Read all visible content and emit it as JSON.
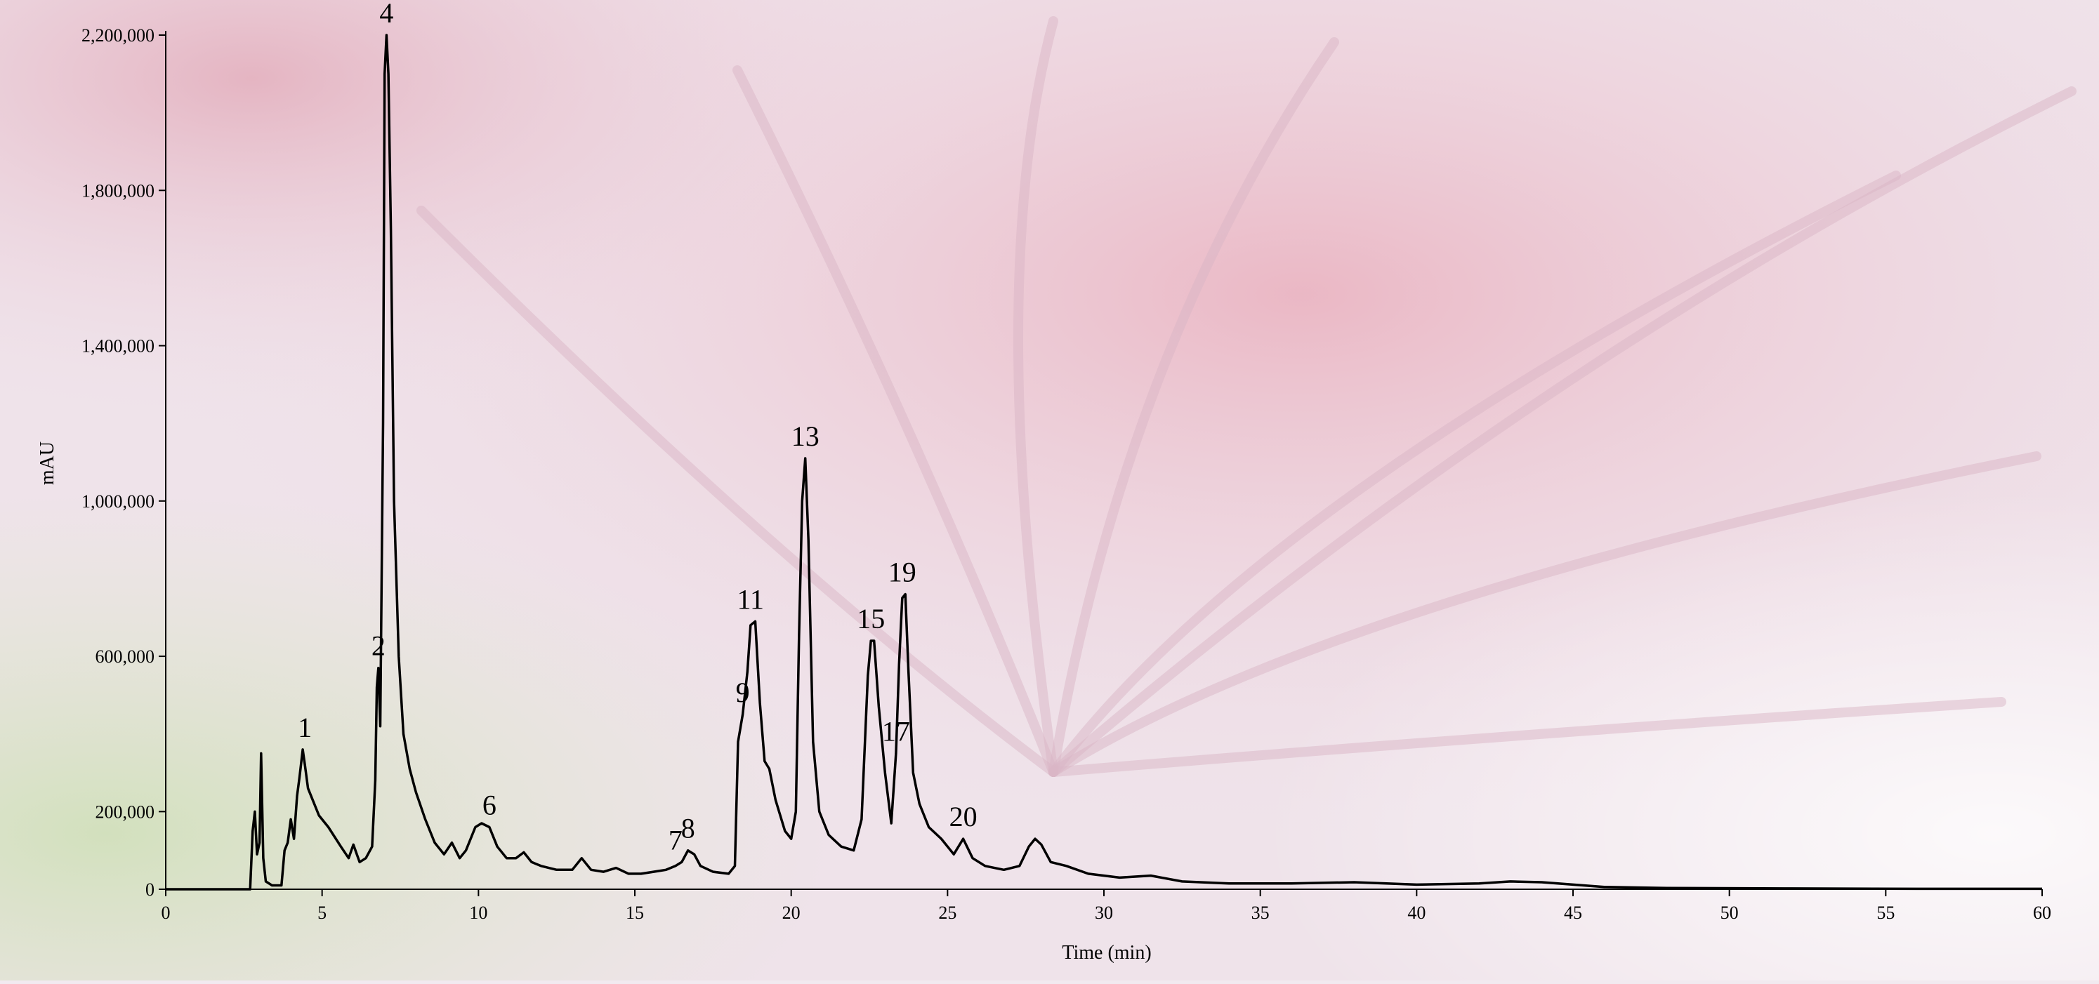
{
  "chart_data": {
    "type": "line",
    "title": "",
    "xlabel": "Time (min)",
    "ylabel": "mAU",
    "xlim": [
      0,
      60
    ],
    "ylim": [
      0,
      2200000
    ],
    "x_ticks": [
      0,
      5,
      10,
      15,
      20,
      25,
      30,
      35,
      40,
      45,
      50,
      55,
      60
    ],
    "x_tick_labels": [
      "0",
      "5",
      "10",
      "15",
      "20",
      "25",
      "30",
      "35",
      "40",
      "45",
      "50",
      "55",
      "60"
    ],
    "y_ticks": [
      0,
      200000,
      600000,
      1000000,
      1400000,
      1800000,
      2200000
    ],
    "y_tick_labels": [
      "0",
      "200,000",
      "600,000",
      "1,000,000",
      "1,400,000",
      "1,800,000",
      "2,200,000"
    ],
    "grid": false,
    "series": [
      {
        "name": "",
        "color": "#000000",
        "x": [
          0,
          2.7,
          2.78,
          2.85,
          2.92,
          3.0,
          3.05,
          3.12,
          3.2,
          3.4,
          3.7,
          3.8,
          3.9,
          4.0,
          4.1,
          4.2,
          4.28,
          4.38,
          4.45,
          4.55,
          4.7,
          4.9,
          5.2,
          5.6,
          5.85,
          6.0,
          6.2,
          6.4,
          6.6,
          6.7,
          6.75,
          6.8,
          6.86,
          6.95,
          7.0,
          7.06,
          7.12,
          7.2,
          7.3,
          7.45,
          7.6,
          7.8,
          8.0,
          8.3,
          8.6,
          8.9,
          9.15,
          9.4,
          9.6,
          9.9,
          10.1,
          10.35,
          10.6,
          10.9,
          11.2,
          11.45,
          11.7,
          12.0,
          12.5,
          13.0,
          13.3,
          13.6,
          14.0,
          14.4,
          14.8,
          15.2,
          15.6,
          16.0,
          16.3,
          16.5,
          16.7,
          16.9,
          17.1,
          17.5,
          18.0,
          18.2,
          18.3,
          18.45,
          18.6,
          18.7,
          18.85,
          19.0,
          19.15,
          19.3,
          19.5,
          19.8,
          20.0,
          20.15,
          20.25,
          20.35,
          20.45,
          20.55,
          20.7,
          20.9,
          21.2,
          21.6,
          22.0,
          22.25,
          22.45,
          22.55,
          22.65,
          22.8,
          23.0,
          23.2,
          23.35,
          23.45,
          23.55,
          23.65,
          23.75,
          23.9,
          24.1,
          24.4,
          24.8,
          25.2,
          25.5,
          25.8,
          26.2,
          26.8,
          27.3,
          27.6,
          27.8,
          28.0,
          28.3,
          28.8,
          29.5,
          30.5,
          31.5,
          32.5,
          34.0,
          36.0,
          38.0,
          40.0,
          42.0,
          43.0,
          44.0,
          45.0,
          46.0,
          48.0,
          52.0,
          56.0,
          60.0
        ],
        "y": [
          0,
          0,
          150000,
          200000,
          90000,
          120000,
          350000,
          80000,
          20000,
          10000,
          10000,
          100000,
          120000,
          180000,
          130000,
          240000,
          290000,
          360000,
          320000,
          260000,
          230000,
          190000,
          160000,
          110000,
          80000,
          115000,
          70000,
          80000,
          110000,
          280000,
          520000,
          570000,
          420000,
          1200000,
          2100000,
          2200000,
          2100000,
          1700000,
          1000000,
          600000,
          400000,
          310000,
          250000,
          180000,
          120000,
          90000,
          120000,
          80000,
          100000,
          160000,
          170000,
          160000,
          110000,
          80000,
          80000,
          95000,
          70000,
          60000,
          50000,
          50000,
          80000,
          50000,
          45000,
          55000,
          40000,
          40000,
          45000,
          50000,
          60000,
          70000,
          100000,
          90000,
          60000,
          45000,
          40000,
          60000,
          380000,
          450000,
          560000,
          680000,
          690000,
          480000,
          330000,
          310000,
          230000,
          150000,
          130000,
          200000,
          650000,
          1000000,
          1110000,
          900000,
          380000,
          200000,
          140000,
          110000,
          100000,
          180000,
          550000,
          640000,
          640000,
          470000,
          300000,
          170000,
          350000,
          580000,
          750000,
          760000,
          560000,
          300000,
          220000,
          160000,
          130000,
          90000,
          130000,
          80000,
          60000,
          50000,
          60000,
          110000,
          130000,
          115000,
          70000,
          60000,
          40000,
          30000,
          35000,
          20000,
          15000,
          15000,
          18000,
          12000,
          15000,
          20000,
          18000,
          12000,
          6000,
          3000,
          2000,
          1000,
          1000
        ]
      }
    ],
    "annotations": [
      {
        "text": "1",
        "x": 4.45,
        "y": 360000
      },
      {
        "text": "2",
        "x": 6.8,
        "y": 570000
      },
      {
        "text": "4",
        "x": 7.06,
        "y": 2200000
      },
      {
        "text": "6",
        "x": 10.35,
        "y": 160000
      },
      {
        "text": "7",
        "x": 16.3,
        "y": 70000
      },
      {
        "text": "8",
        "x": 16.7,
        "y": 100000
      },
      {
        "text": "9",
        "x": 18.45,
        "y": 450000
      },
      {
        "text": "11",
        "x": 18.7,
        "y": 690000
      },
      {
        "text": "13",
        "x": 20.45,
        "y": 1110000
      },
      {
        "text": "15",
        "x": 22.55,
        "y": 640000
      },
      {
        "text": "17",
        "x": 23.35,
        "y": 350000
      },
      {
        "text": "19",
        "x": 23.55,
        "y": 760000
      },
      {
        "text": "20",
        "x": 25.5,
        "y": 130000
      }
    ]
  }
}
